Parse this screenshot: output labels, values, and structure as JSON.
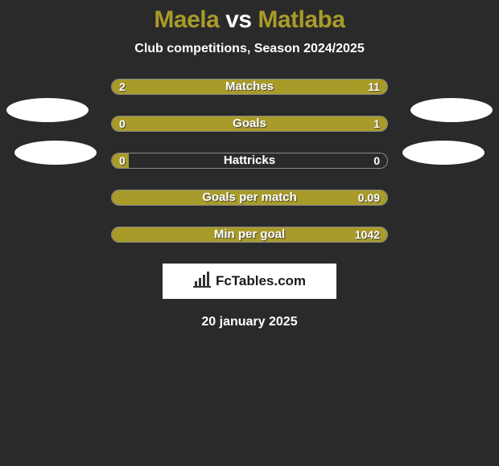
{
  "background_color": "#2a2a2a",
  "title": {
    "player1": "Maela",
    "vs": "vs",
    "player2": "Matlaba",
    "player1_color": "#a89b29",
    "vs_color": "#ffffff",
    "player2_color": "#a89b29"
  },
  "subtitle": "Club competitions, Season 2024/2025",
  "bar_colors": {
    "left": "#a89b29",
    "right": "#a89b29",
    "track_border": "rgba(255,255,255,0.45)"
  },
  "stats": [
    {
      "label": "Matches",
      "left_value": "2",
      "right_value": "11",
      "left_pct": 18,
      "right_pct": 82
    },
    {
      "label": "Goals",
      "left_value": "0",
      "right_value": "1",
      "left_pct": 6,
      "right_pct": 94
    },
    {
      "label": "Hattricks",
      "left_value": "0",
      "right_value": "0",
      "left_pct": 6,
      "right_pct": 0
    },
    {
      "label": "Goals per match",
      "left_value": "",
      "right_value": "0.09",
      "left_pct": 0,
      "right_pct": 100
    },
    {
      "label": "Min per goal",
      "left_value": "",
      "right_value": "1042",
      "left_pct": 0,
      "right_pct": 100
    }
  ],
  "brand": {
    "text": "FcTables.com",
    "icon_color": "#333333",
    "box_bg": "#ffffff"
  },
  "date": "20 january 2025",
  "badges": {
    "bg": "#ffffff"
  }
}
